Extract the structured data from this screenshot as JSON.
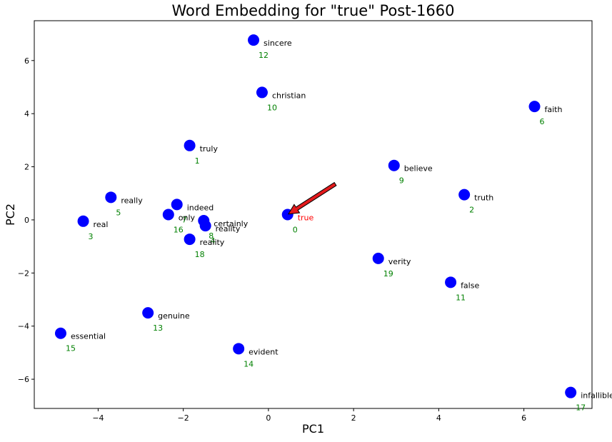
{
  "chart_data": {
    "type": "scatter",
    "title": "Word Embedding for \"true\" Post-1660",
    "xlabel": "PC1",
    "ylabel": "PC2",
    "xlim": [
      -5.5,
      7.6
    ],
    "ylim": [
      -7.1,
      7.5
    ],
    "xticks": [
      -4,
      -2,
      0,
      2,
      4,
      6
    ],
    "yticks": [
      -6,
      -4,
      -2,
      0,
      2,
      4,
      6
    ],
    "grid": false,
    "colors": {
      "point": "#0000ff",
      "word": "#000000",
      "index": "#008000",
      "target": "#ff0000",
      "arrow": "#e31a1c"
    },
    "points": [
      {
        "word": "true",
        "index": "0",
        "x": 0.45,
        "y": 0.2,
        "target": true
      },
      {
        "word": "truly",
        "index": "1",
        "x": -1.85,
        "y": 2.8
      },
      {
        "word": "truth",
        "index": "2",
        "x": 4.6,
        "y": 0.95
      },
      {
        "word": "real",
        "index": "3",
        "x": -4.35,
        "y": -0.05
      },
      {
        "word": "reality",
        "index": "4",
        "x": -1.48,
        "y": -0.22
      },
      {
        "word": "really",
        "index": "5",
        "x": -3.7,
        "y": 0.85
      },
      {
        "word": "faith",
        "index": "6",
        "x": 6.25,
        "y": 4.27
      },
      {
        "word": "indeed",
        "index": "7",
        "x": -2.15,
        "y": 0.58
      },
      {
        "word": "certainly",
        "index": "8",
        "x": -1.52,
        "y": -0.03
      },
      {
        "word": "believe",
        "index": "9",
        "x": 2.95,
        "y": 2.05
      },
      {
        "word": "christian",
        "index": "10",
        "x": -0.15,
        "y": 4.8
      },
      {
        "word": "false",
        "index": "11",
        "x": 4.28,
        "y": -2.35
      },
      {
        "word": "sincere",
        "index": "12",
        "x": -0.35,
        "y": 6.77
      },
      {
        "word": "genuine",
        "index": "13",
        "x": -2.83,
        "y": -3.5
      },
      {
        "word": "evident",
        "index": "14",
        "x": -0.7,
        "y": -4.85
      },
      {
        "word": "essential",
        "index": "15",
        "x": -4.88,
        "y": -4.27
      },
      {
        "word": "only",
        "index": "16",
        "x": -2.35,
        "y": 0.2
      },
      {
        "word": "infallible",
        "index": "17",
        "x": 7.1,
        "y": -6.5
      },
      {
        "word": "reality",
        "index": "18",
        "x": -1.85,
        "y": -0.73
      },
      {
        "word": "verity",
        "index": "19",
        "x": 2.58,
        "y": -1.45
      }
    ],
    "arrow": {
      "from": [
        1.57,
        1.35
      ],
      "to": [
        0.47,
        0.22
      ]
    }
  }
}
